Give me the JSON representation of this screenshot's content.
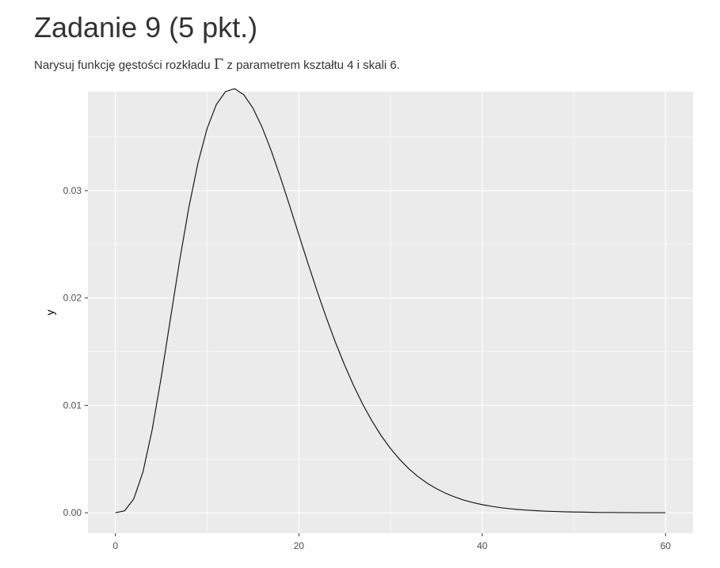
{
  "page": {
    "heading": "Zadanie 9 (5 pkt.)",
    "description_before": "Narysuj funkcję gęstości rozkładu ",
    "description_symbol": "Γ",
    "description_after": " z parametrem kształtu 4 i skali 6."
  },
  "chart_data": {
    "type": "line",
    "title": "",
    "xlabel": "",
    "ylabel": "y",
    "xlim": [
      -3,
      63
    ],
    "ylim": [
      -0.0019,
      0.0392
    ],
    "x_ticks": [
      0,
      20,
      40,
      60
    ],
    "x_tick_labels": [
      "0",
      "20",
      "40",
      "60"
    ],
    "y_ticks": [
      0,
      0.01,
      0.02,
      0.03
    ],
    "y_tick_labels": [
      "0.00",
      "0.01",
      "0.02",
      "0.03"
    ],
    "grid": true,
    "background": "#ebebeb",
    "grid_color": "#ffffff",
    "line_color": "#1a1a1a",
    "series": [
      {
        "x": [
          0,
          1,
          2,
          3,
          4,
          5,
          6,
          7,
          8,
          9,
          10,
          11,
          12,
          13,
          14,
          15,
          16,
          17,
          18,
          19,
          20,
          21,
          22,
          23,
          24,
          25,
          26,
          27,
          28,
          29,
          30,
          31,
          32,
          33,
          34,
          35,
          36,
          37,
          38,
          39,
          40,
          41,
          42,
          43,
          44,
          45,
          46,
          47,
          48,
          49,
          50,
          51,
          52,
          53,
          54,
          55,
          56,
          57,
          58,
          59,
          60
        ],
        "y": [
          0,
          0.00018,
          0.00129,
          0.00379,
          0.0077,
          0.01264,
          0.01807,
          0.02346,
          0.02839,
          0.03256,
          0.03578,
          0.038,
          0.03921,
          0.03948,
          0.03892,
          0.03768,
          0.03589,
          0.03369,
          0.03122,
          0.02859,
          0.0259,
          0.02322,
          0.02063,
          0.01817,
          0.01586,
          0.01374,
          0.0118,
          0.01006,
          0.00852,
          0.00716,
          0.00598,
          0.00497,
          0.0041,
          0.00337,
          0.00276,
          0.00225,
          0.00182,
          0.00147,
          0.00118,
          0.00095,
          0.00076,
          0.00061,
          0.00048,
          0.00038,
          0.0003,
          0.00024,
          0.00019,
          0.00015,
          0.00012,
          9e-05,
          7e-05,
          6e-05,
          4e-05,
          3e-05,
          3e-05,
          2e-05,
          2e-05,
          1e-05,
          1e-05,
          1e-05,
          1e-05
        ]
      }
    ]
  }
}
